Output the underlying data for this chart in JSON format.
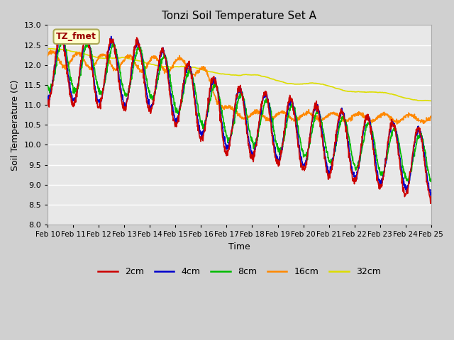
{
  "title": "Tonzi Soil Temperature Set A",
  "xlabel": "Time",
  "ylabel": "Soil Temperature (C)",
  "annotation": "TZ_fmet",
  "legend_labels": [
    "2cm",
    "4cm",
    "8cm",
    "16cm",
    "32cm"
  ],
  "colors": {
    "2cm": "#cc0000",
    "4cm": "#0000cc",
    "8cm": "#00bb00",
    "16cm": "#ff8800",
    "32cm": "#dddd00"
  },
  "ylim": [
    8.0,
    13.0
  ],
  "xlim": [
    10,
    25
  ],
  "yticks": [
    8.0,
    8.5,
    9.0,
    9.5,
    10.0,
    10.5,
    11.0,
    11.5,
    12.0,
    12.5,
    13.0
  ],
  "xtick_days": [
    10,
    11,
    12,
    13,
    14,
    15,
    16,
    17,
    18,
    19,
    20,
    21,
    22,
    23,
    24,
    25
  ],
  "fig_bg": "#d0d0d0",
  "plot_bg": "#e8e8e8",
  "grid_color": "#ffffff"
}
